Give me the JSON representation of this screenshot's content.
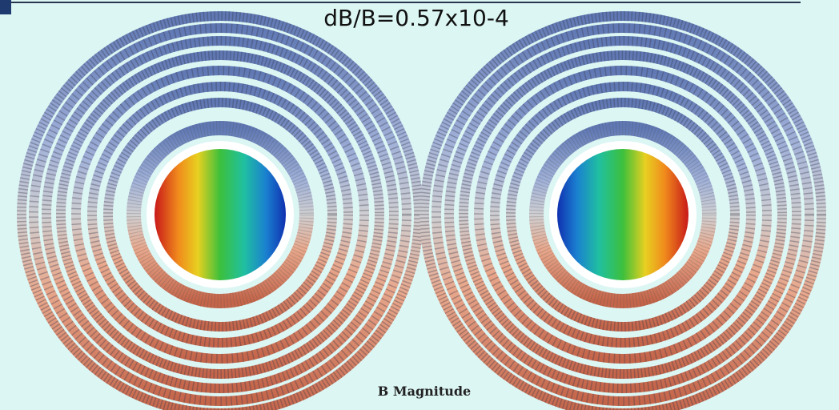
{
  "header": {
    "title": "dB/B=0.57x10-4"
  },
  "caption": "B Magnitude"
}
